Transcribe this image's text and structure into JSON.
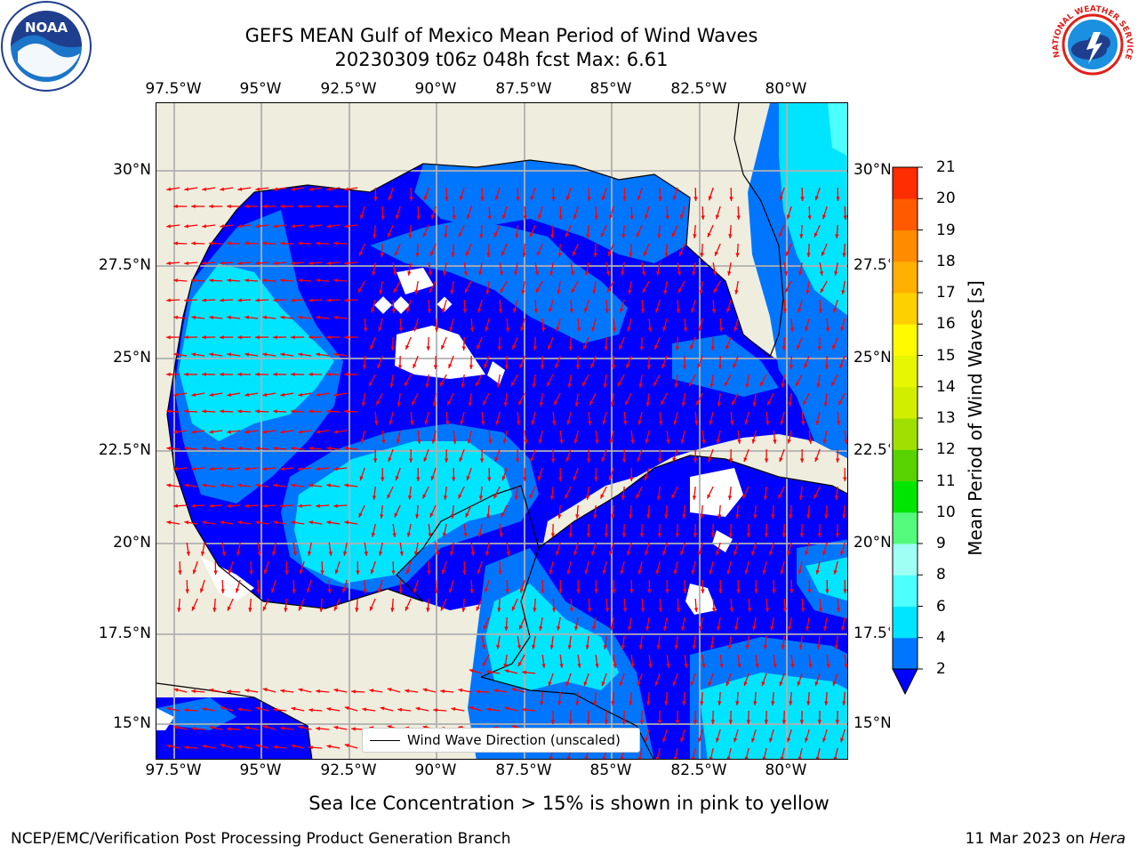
{
  "title": {
    "line1": "GEFS MEAN Gulf of Mexico Mean Period of Wind Waves",
    "line2": "20230309 t06z 048h fcst   Max: 6.61"
  },
  "map": {
    "lon_labels": [
      "97.5°W",
      "95°W",
      "92.5°W",
      "90°W",
      "87.5°W",
      "85°W",
      "82.5°W",
      "80°W"
    ],
    "lat_labels_left": [
      "30°N",
      "27.5°N",
      "25°N",
      "22.5°N",
      "20°N",
      "17.5°N",
      "15°N"
    ],
    "lat_labels_right": [
      "30°N",
      "27.5°N",
      "25°N",
      "22.5°N",
      "20°N",
      "17.5°N",
      "15°N"
    ],
    "colors": {
      "land": "#eeedde",
      "grid": "#b0b0b0",
      "coast": "#000000",
      "arrow": "#ff0000"
    }
  },
  "colorbar": {
    "label": "Mean Period of Wind Waves [s]",
    "ticks": [
      "2",
      "4",
      "6",
      "8",
      "9",
      "10",
      "11",
      "12",
      "13",
      "14",
      "15",
      "16",
      "17",
      "18",
      "19",
      "20",
      "21"
    ],
    "colors": [
      "#0076ff",
      "#00e5ff",
      "#4dffff",
      "#a0fff5",
      "#54fa7c",
      "#00e600",
      "#58d300",
      "#a0e000",
      "#d2ee00",
      "#e6f500",
      "#fffa00",
      "#ffd000",
      "#ffb000",
      "#ff8b00",
      "#ff5a00",
      "#ff2d00",
      "#ff0000"
    ],
    "under_color": "#0000ff"
  },
  "legend": {
    "label": "Wind Wave Direction (unscaled)"
  },
  "note": "Sea Ice Concentration > 15% is shown in pink to yellow",
  "footer": {
    "left": "NCEP/EMC/Verification Post Processing Product Generation Branch",
    "date": "11 Mar 2023 on ",
    "machine": "Hera"
  },
  "logos": {
    "noaa": "NOAA",
    "nws": "NATIONAL WEATHER SERVICE"
  }
}
